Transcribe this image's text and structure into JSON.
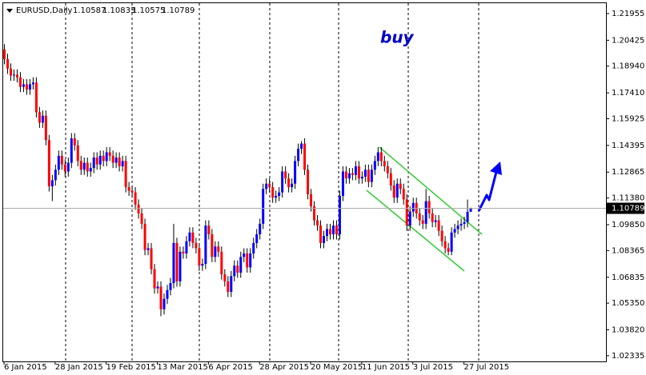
{
  "chart_data": {
    "type": "candlestick",
    "title": "EURUSD,Daily",
    "annotation": "buy",
    "up_color": "#0000ff",
    "down_color": "#ff0000",
    "wick_color": "#000000",
    "ylim": [
      1.0201,
      1.2255
    ],
    "yticks": [
      1.21955,
      1.20425,
      {
        "value": 1.1894,
        "label": "1.18940"
      },
      {
        "value": 1.1741,
        "label": "1.17410"
      },
      1.15925,
      1.14395,
      1.12865,
      {
        "value": 1.1138,
        "label": "1.11380"
      },
      {
        "value": 1.0985,
        "label": "1.09850"
      },
      1.08365,
      1.06835,
      {
        "value": 1.0535,
        "label": "1.05350"
      },
      {
        "value": 1.0382,
        "label": "1.03820"
      },
      1.02335
    ],
    "categories": [
      "6 Jan 2015",
      null,
      null,
      null,
      null,
      null,
      null,
      null,
      null,
      null,
      null,
      null,
      null,
      null,
      null,
      null,
      "28 Jan 2015",
      null,
      null,
      null,
      null,
      null,
      null,
      null,
      null,
      null,
      null,
      null,
      null,
      null,
      null,
      null,
      "19 Feb 2015",
      null,
      null,
      null,
      null,
      null,
      null,
      null,
      null,
      null,
      null,
      null,
      null,
      null,
      null,
      null,
      "13 Mar 2015",
      null,
      null,
      null,
      null,
      null,
      null,
      null,
      null,
      null,
      null,
      null,
      null,
      null,
      null,
      null,
      "6 Apr 2015",
      null,
      null,
      null,
      null,
      null,
      null,
      null,
      null,
      null,
      null,
      null,
      null,
      null,
      null,
      null,
      "28 Apr 2015",
      null,
      null,
      null,
      null,
      null,
      null,
      null,
      null,
      null,
      null,
      null,
      null,
      null,
      null,
      null,
      "20 May 2015",
      null,
      null,
      null,
      null,
      null,
      null,
      null,
      null,
      null,
      null,
      null,
      null,
      null,
      null,
      null,
      "11 Jun 2015",
      null,
      null,
      null,
      null,
      null,
      null,
      null,
      null,
      null,
      null,
      null,
      null,
      null,
      null,
      null,
      "3 Jul 2015",
      null,
      null,
      null,
      null,
      null,
      null,
      null,
      null,
      null,
      null,
      null,
      null,
      null,
      null,
      null,
      "27 Jul 2015",
      null,
      null
    ],
    "open": [
      1.199,
      1.1935,
      1.188,
      1.184,
      1.1845,
      1.183,
      1.1775,
      1.179,
      1.176,
      1.179,
      1.18,
      1.163,
      1.157,
      1.161,
      1.147,
      1.1205,
      1.124,
      1.13,
      1.138,
      1.133,
      1.129,
      1.134,
      1.148,
      1.144,
      1.135,
      1.13,
      1.134,
      1.129,
      1.131,
      1.137,
      1.133,
      1.138,
      1.135,
      1.14,
      1.138,
      1.134,
      1.137,
      1.132,
      1.135,
      1.12,
      1.118,
      1.117,
      1.11,
      1.105,
      1.099,
      1.084,
      1.085,
      1.073,
      1.062,
      1.063,
      1.05,
      1.056,
      1.061,
      1.065,
      1.088,
      1.066,
      1.083,
      1.082,
      1.089,
      1.094,
      1.088,
      1.085,
      1.075,
      1.076,
      1.098,
      1.093,
      1.08,
      1.086,
      1.083,
      1.07,
      1.066,
      1.06,
      1.069,
      1.075,
      1.071,
      1.08,
      1.082,
      1.074,
      1.082,
      1.088,
      1.093,
      1.099,
      1.119,
      1.122,
      1.12,
      1.114,
      1.115,
      1.117,
      1.129,
      1.125,
      1.12,
      1.122,
      1.135,
      1.142,
      1.145,
      1.13,
      1.116,
      1.109,
      1.101,
      1.098,
      1.088,
      1.092,
      1.096,
      1.093,
      1.098,
      1.093,
      1.115,
      1.129,
      1.125,
      1.128,
      1.127,
      1.132,
      1.125,
      1.126,
      1.13,
      1.123,
      1.13,
      1.135,
      1.14,
      1.135,
      1.132,
      1.128,
      1.121,
      1.114,
      1.122,
      1.119,
      1.113,
      1.098,
      1.106,
      1.111,
      1.105,
      1.101,
      1.099,
      1.112,
      1.105,
      1.1,
      1.101,
      1.095,
      1.089,
      1.085,
      1.083,
      1.094,
      1.096,
      1.098,
      1.099,
      1.1,
      1.10587
    ],
    "high": [
      1.202,
      1.1965,
      1.191,
      1.1875,
      1.1875,
      1.186,
      1.182,
      1.182,
      1.182,
      1.183,
      1.183,
      1.166,
      1.164,
      1.164,
      1.15,
      1.127,
      1.133,
      1.141,
      1.141,
      1.136,
      1.137,
      1.151,
      1.151,
      1.147,
      1.138,
      1.137,
      1.137,
      1.134,
      1.14,
      1.14,
      1.141,
      1.141,
      1.143,
      1.143,
      1.141,
      1.14,
      1.14,
      1.138,
      1.138,
      1.123,
      1.121,
      1.12,
      1.113,
      1.108,
      1.102,
      1.088,
      1.088,
      1.076,
      1.066,
      1.066,
      1.059,
      1.064,
      1.068,
      1.099,
      1.091,
      1.086,
      1.086,
      1.092,
      1.097,
      1.097,
      1.091,
      1.088,
      1.079,
      1.101,
      1.101,
      1.096,
      1.089,
      1.089,
      1.086,
      1.073,
      1.069,
      1.072,
      1.078,
      1.078,
      1.083,
      1.085,
      1.085,
      1.085,
      1.091,
      1.096,
      1.102,
      1.122,
      1.125,
      1.125,
      1.123,
      1.118,
      1.12,
      1.132,
      1.132,
      1.128,
      1.125,
      1.138,
      1.145,
      1.1465,
      1.148,
      1.133,
      1.119,
      1.112,
      1.104,
      1.101,
      1.095,
      1.099,
      1.099,
      1.101,
      1.101,
      1.118,
      1.132,
      1.132,
      1.131,
      1.131,
      1.135,
      1.135,
      1.129,
      1.133,
      1.133,
      1.133,
      1.138,
      1.143,
      1.143,
      1.138,
      1.135,
      1.131,
      1.124,
      1.125,
      1.125,
      1.122,
      1.116,
      1.109,
      1.114,
      1.114,
      1.108,
      1.104,
      1.119,
      1.115,
      1.108,
      1.104,
      1.104,
      1.098,
      1.092,
      1.088,
      1.097,
      1.099,
      1.101,
      1.102,
      1.103,
      1.1129,
      1.10833
    ],
    "low": [
      1.1905,
      1.185,
      1.181,
      1.181,
      1.18,
      1.1745,
      1.1745,
      1.173,
      1.173,
      1.176,
      1.16,
      1.154,
      1.154,
      1.144,
      1.1175,
      1.112,
      1.121,
      1.127,
      1.13,
      1.126,
      1.126,
      1.131,
      1.141,
      1.132,
      1.127,
      1.127,
      1.126,
      1.126,
      1.128,
      1.13,
      1.13,
      1.132,
      1.132,
      1.135,
      1.131,
      1.131,
      1.129,
      1.129,
      1.117,
      1.115,
      1.114,
      1.107,
      1.102,
      1.096,
      1.081,
      1.081,
      1.07,
      1.059,
      1.059,
      1.046,
      1.047,
      1.053,
      1.058,
      1.062,
      1.063,
      1.063,
      1.079,
      1.079,
      1.086,
      1.085,
      1.082,
      1.072,
      1.072,
      1.073,
      1.09,
      1.077,
      1.077,
      1.08,
      1.067,
      1.063,
      1.057,
      1.057,
      1.066,
      1.068,
      1.068,
      1.077,
      1.071,
      1.071,
      1.079,
      1.085,
      1.09,
      1.096,
      1.116,
      1.117,
      1.111,
      1.111,
      1.112,
      1.114,
      1.122,
      1.117,
      1.117,
      1.119,
      1.132,
      1.139,
      1.127,
      1.113,
      1.106,
      1.098,
      1.095,
      1.085,
      1.085,
      1.089,
      1.09,
      1.09,
      1.09,
      1.09,
      1.112,
      1.122,
      1.122,
      1.124,
      1.124,
      1.122,
      1.122,
      1.123,
      1.12,
      1.12,
      1.127,
      1.132,
      1.132,
      1.129,
      1.125,
      1.118,
      1.111,
      1.111,
      1.116,
      1.11,
      1.095,
      1.095,
      1.103,
      1.102,
      1.098,
      1.096,
      1.096,
      1.102,
      1.097,
      1.097,
      1.092,
      1.086,
      1.082,
      1.081,
      1.081,
      1.091,
      1.093,
      1.095,
      1.096,
      1.097,
      1.10575
    ],
    "close": [
      1.1935,
      1.188,
      1.184,
      1.1845,
      1.183,
      1.1775,
      1.179,
      1.176,
      1.179,
      1.18,
      1.163,
      1.157,
      1.161,
      1.147,
      1.1205,
      1.124,
      1.13,
      1.138,
      1.133,
      1.129,
      1.134,
      1.148,
      1.144,
      1.135,
      1.13,
      1.134,
      1.129,
      1.131,
      1.137,
      1.133,
      1.138,
      1.135,
      1.14,
      1.138,
      1.134,
      1.137,
      1.132,
      1.135,
      1.12,
      1.118,
      1.117,
      1.11,
      1.105,
      1.099,
      1.084,
      1.085,
      1.073,
      1.062,
      1.063,
      1.05,
      1.056,
      1.061,
      1.065,
      1.088,
      1.066,
      1.083,
      1.082,
      1.089,
      1.094,
      1.088,
      1.085,
      1.075,
      1.076,
      1.098,
      1.093,
      1.08,
      1.086,
      1.083,
      1.07,
      1.066,
      1.06,
      1.069,
      1.075,
      1.071,
      1.08,
      1.082,
      1.074,
      1.082,
      1.088,
      1.093,
      1.099,
      1.119,
      1.122,
      1.12,
      1.114,
      1.115,
      1.117,
      1.129,
      1.125,
      1.12,
      1.122,
      1.135,
      1.142,
      1.145,
      1.13,
      1.116,
      1.109,
      1.101,
      1.098,
      1.088,
      1.092,
      1.096,
      1.093,
      1.098,
      1.093,
      1.115,
      1.129,
      1.125,
      1.128,
      1.127,
      1.132,
      1.125,
      1.126,
      1.13,
      1.123,
      1.13,
      1.135,
      1.14,
      1.135,
      1.132,
      1.128,
      1.121,
      1.114,
      1.122,
      1.119,
      1.113,
      1.098,
      1.106,
      1.111,
      1.105,
      1.101,
      1.099,
      1.112,
      1.105,
      1.1,
      1.101,
      1.095,
      1.089,
      1.085,
      1.083,
      1.094,
      1.096,
      1.098,
      1.099,
      1.1,
      1.10587,
      1.10789
    ]
  }
}
